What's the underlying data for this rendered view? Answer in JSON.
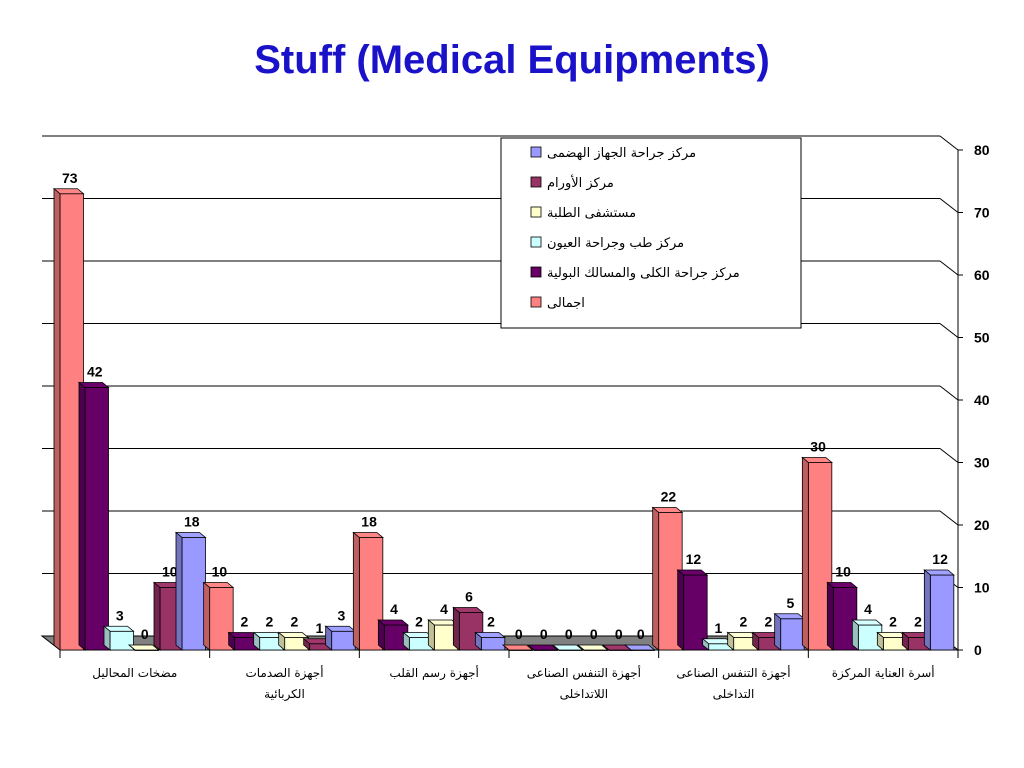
{
  "title": "Stuff (Medical Equipments)",
  "chart_data": {
    "type": "bar",
    "title": "Stuff (Medical Equipments)",
    "xlabel": "",
    "ylabel": "",
    "ylim": [
      0,
      80
    ],
    "yticks": [
      0,
      10,
      20,
      30,
      40,
      50,
      60,
      70,
      80
    ],
    "grid": true,
    "legend_position": "top-right",
    "categories": [
      [
        "مضخات المحاليل"
      ],
      [
        "أجهزة الصدمات",
        "الكربائية"
      ],
      [
        "أجهزة رسم القلب"
      ],
      [
        "أجهزة التنفس الصناعى",
        "اللاتداخلى"
      ],
      [
        "أجهزة التنفس الصناعى",
        "التداخلى"
      ],
      [
        "أسرة العناية المركزة"
      ]
    ],
    "series": [
      {
        "name": "اجمالى",
        "color": "#ff8080",
        "values": [
          73,
          10,
          18,
          0,
          22,
          30
        ]
      },
      {
        "name": "مركز جراحة الكلى والمسالك البولية",
        "color": "#660066",
        "values": [
          42,
          2,
          4,
          0,
          12,
          10
        ]
      },
      {
        "name": "مركز طب وجراحة العيون",
        "color": "#ccffff",
        "values": [
          3,
          2,
          2,
          0,
          1,
          4
        ]
      },
      {
        "name": "مستشفى الطلبة",
        "color": "#ffffcc",
        "values": [
          0,
          2,
          4,
          0,
          2,
          2
        ]
      },
      {
        "name": "مركز الأورام",
        "color": "#993366",
        "values": [
          10,
          1,
          6,
          0,
          2,
          2
        ]
      },
      {
        "name": "مركز جراحة الجهاز الهضمى",
        "color": "#9999ff",
        "values": [
          18,
          3,
          2,
          0,
          5,
          12
        ]
      }
    ],
    "legend_order": [
      5,
      4,
      3,
      2,
      1,
      0
    ]
  }
}
